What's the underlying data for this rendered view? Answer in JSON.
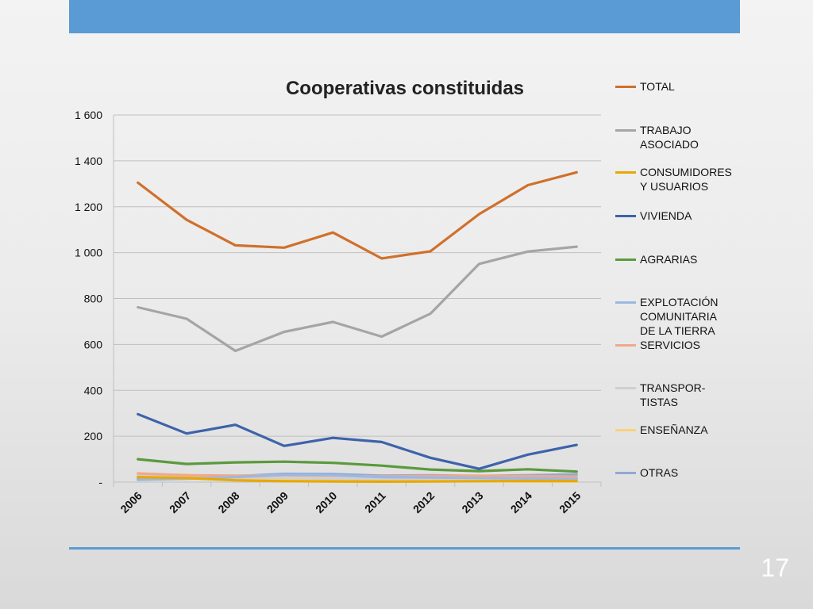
{
  "slide": {
    "number": "17",
    "accent_color": "#5b9bd5"
  },
  "chart_data": {
    "type": "line",
    "title": "Cooperativas constituidas",
    "xlabel": "",
    "ylabel": "",
    "ylim": [
      0,
      1600
    ],
    "y_ticks": [
      {
        "value": 0,
        "label": "-"
      },
      {
        "value": 200,
        "label": "200"
      },
      {
        "value": 400,
        "label": "400"
      },
      {
        "value": 600,
        "label": "600"
      },
      {
        "value": 800,
        "label": "800"
      },
      {
        "value": 1000,
        "label": "1 000"
      },
      {
        "value": 1200,
        "label": "1 200"
      },
      {
        "value": 1400,
        "label": "1 400"
      },
      {
        "value": 1600,
        "label": "1 600"
      }
    ],
    "grid": true,
    "legend_position": "right",
    "categories": [
      "2006",
      "2007",
      "2008",
      "2009",
      "2010",
      "2011",
      "2012",
      "2013",
      "2014",
      "2015"
    ],
    "series": [
      {
        "name": "TOTAL",
        "color": "#d0702b",
        "values": [
          1305,
          1143,
          1032,
          1022,
          1088,
          975,
          1006,
          1168,
          1294,
          1350
        ]
      },
      {
        "name": "TRABAJO\nASOCIADO",
        "color": "#a5a5a5",
        "values": [
          762,
          712,
          572,
          655,
          698,
          634,
          734,
          951,
          1005,
          1026
        ]
      },
      {
        "name": "CONSUMIDORES\nY USUARIOS",
        "color": "#e8a800",
        "values": [
          22,
          18,
          8,
          4,
          3,
          2,
          3,
          4,
          5,
          5
        ]
      },
      {
        "name": "VIVIENDA",
        "color": "#3d63a9",
        "values": [
          296,
          212,
          250,
          158,
          193,
          175,
          106,
          58,
          120,
          162
        ]
      },
      {
        "name": "AGRARIAS",
        "color": "#5a9a3c",
        "values": [
          100,
          79,
          86,
          89,
          84,
          72,
          55,
          48,
          56,
          46
        ]
      },
      {
        "name": "EXPLOTACIÓN\nCOMUNITARIA\nDE LA TIERRA",
        "color": "#9db8e0",
        "values": [
          10,
          15,
          22,
          32,
          30,
          22,
          20,
          18,
          16,
          14
        ]
      },
      {
        "name": "SERVICIOS",
        "color": "#f0a98a",
        "values": [
          38,
          30,
          28,
          30,
          28,
          25,
          27,
          28,
          26,
          24
        ]
      },
      {
        "name": "TRANSPOR-\nTISTAS",
        "color": "#cfcfcf",
        "values": [
          30,
          25,
          20,
          18,
          15,
          14,
          16,
          15,
          14,
          15
        ]
      },
      {
        "name": "ENSEÑANZA",
        "color": "#fbd27a",
        "values": [
          30,
          32,
          12,
          8,
          6,
          4,
          4,
          4,
          3,
          3
        ]
      },
      {
        "name": "OTRAS",
        "color": "#8fa9d6",
        "values": [
          15,
          20,
          26,
          36,
          35,
          28,
          30,
          27,
          30,
          34
        ]
      }
    ]
  }
}
